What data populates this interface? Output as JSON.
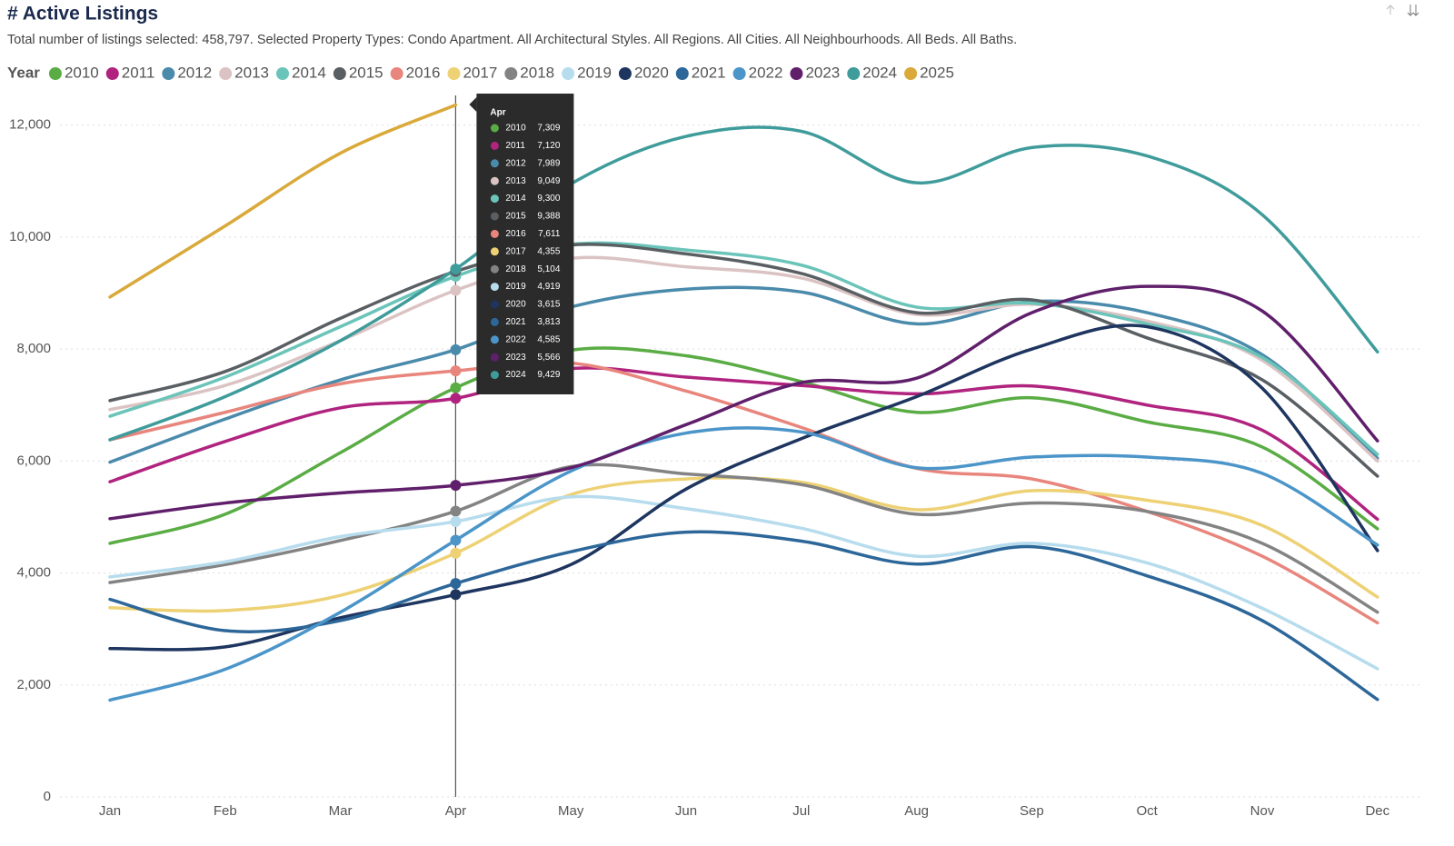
{
  "chart_data": {
    "type": "line",
    "title": "# Active Listings",
    "subtitle": "Total number of listings selected: 458,797. Selected Property Types: Condo Apartment. All Architectural Styles. All Regions. All Cities. All Neighbourhoods. All Beds. All Baths.",
    "legend_title": "Year",
    "categories": [
      "Jan",
      "Feb",
      "Mar",
      "Apr",
      "May",
      "Jun",
      "Jul",
      "Aug",
      "Sep",
      "Oct",
      "Nov",
      "Dec"
    ],
    "ylim": [
      0,
      12450
    ],
    "yticks": [
      0,
      {
        "value": 2000,
        "label": "2,000"
      },
      {
        "value": 4000,
        "label": "4,000"
      },
      {
        "value": 6000,
        "label": "6,000"
      },
      {
        "value": 8000,
        "label": "8,000"
      },
      {
        "value": 10000,
        "label": "10,000"
      },
      {
        "value": 12000,
        "label": "12,000"
      }
    ],
    "grid": true,
    "series": [
      {
        "name": "2010",
        "color": "#5aac44",
        "values": [
          4530,
          5050,
          6150,
          7309,
          7980,
          7880,
          7420,
          6870,
          7130,
          6700,
          6250,
          4790
        ],
        "value_labels": [
          null,
          null,
          null,
          "7,309",
          null,
          null,
          null,
          null,
          null,
          null,
          null,
          null
        ]
      },
      {
        "name": "2011",
        "color": "#b0237e",
        "values": [
          5630,
          6350,
          6950,
          7120,
          7650,
          7500,
          7350,
          7200,
          7340,
          7000,
          6550,
          4960
        ],
        "value_labels": [
          null,
          null,
          null,
          "7,120",
          null,
          null,
          null,
          null,
          null,
          null,
          null,
          null
        ]
      },
      {
        "name": "2012",
        "color": "#4a8aab",
        "values": [
          5980,
          6750,
          7450,
          7989,
          8750,
          9070,
          9020,
          8450,
          8850,
          8650,
          7900,
          6050
        ],
        "value_labels": [
          null,
          null,
          null,
          "7,989",
          null,
          null,
          null,
          null,
          null,
          null,
          null,
          null
        ]
      },
      {
        "name": "2013",
        "color": "#dbc3c3",
        "values": [
          6920,
          7350,
          8150,
          9049,
          9620,
          9470,
          9270,
          8620,
          8800,
          8500,
          7800,
          6000
        ],
        "value_labels": [
          null,
          null,
          null,
          "9,049",
          null,
          null,
          null,
          null,
          null,
          null,
          null,
          null
        ]
      },
      {
        "name": "2014",
        "color": "#6bc4b9",
        "values": [
          6800,
          7500,
          8400,
          9300,
          9870,
          9770,
          9500,
          8750,
          8820,
          8450,
          7850,
          6120
        ],
        "value_labels": [
          null,
          null,
          null,
          "9,300",
          null,
          null,
          null,
          null,
          null,
          null,
          null,
          null
        ]
      },
      {
        "name": "2015",
        "color": "#5a5f63",
        "values": [
          7080,
          7600,
          8550,
          9388,
          9860,
          9700,
          9350,
          8650,
          8880,
          8200,
          7450,
          5730
        ],
        "value_labels": [
          null,
          null,
          null,
          "9,388",
          null,
          null,
          null,
          null,
          null,
          null,
          null,
          null
        ]
      },
      {
        "name": "2016",
        "color": "#e8857c",
        "values": [
          6380,
          6870,
          7380,
          7611,
          7750,
          7250,
          6600,
          5870,
          5680,
          5100,
          4300,
          3110
        ],
        "value_labels": [
          null,
          null,
          null,
          "7,611",
          null,
          null,
          null,
          null,
          null,
          null,
          null,
          null
        ]
      },
      {
        "name": "2017",
        "color": "#edd174",
        "values": [
          3380,
          3330,
          3600,
          4355,
          5400,
          5680,
          5620,
          5130,
          5470,
          5300,
          4850,
          3570
        ],
        "value_labels": [
          null,
          null,
          null,
          "4,355",
          null,
          null,
          null,
          null,
          null,
          null,
          null,
          null
        ]
      },
      {
        "name": "2018",
        "color": "#838383",
        "values": [
          3830,
          4150,
          4580,
          5104,
          5900,
          5770,
          5580,
          5050,
          5250,
          5100,
          4530,
          3300
        ],
        "value_labels": [
          null,
          null,
          null,
          "5,104",
          null,
          null,
          null,
          null,
          null,
          null,
          null,
          null
        ]
      },
      {
        "name": "2019",
        "color": "#b6dced",
        "values": [
          3930,
          4200,
          4650,
          4919,
          5360,
          5150,
          4800,
          4300,
          4530,
          4180,
          3370,
          2290
        ],
        "value_labels": [
          null,
          null,
          null,
          "4,919",
          null,
          null,
          null,
          null,
          null,
          null,
          null,
          null
        ]
      },
      {
        "name": "2020",
        "color": "#1d355f",
        "values": [
          2650,
          2680,
          3200,
          3615,
          4150,
          5500,
          6400,
          7150,
          8000,
          8400,
          7300,
          4400
        ],
        "value_labels": [
          null,
          null,
          null,
          "3,615",
          null,
          null,
          null,
          null,
          null,
          null,
          null,
          null
        ]
      },
      {
        "name": "2021",
        "color": "#2d6799",
        "values": [
          3530,
          2970,
          3150,
          3813,
          4380,
          4730,
          4570,
          4160,
          4470,
          3950,
          3150,
          1740
        ],
        "value_labels": [
          null,
          null,
          null,
          "3,813",
          null,
          null,
          null,
          null,
          null,
          null,
          null,
          null
        ]
      },
      {
        "name": "2022",
        "color": "#4b95c9",
        "values": [
          1730,
          2280,
          3300,
          4585,
          5820,
          6500,
          6520,
          5880,
          6070,
          6070,
          5780,
          4500
        ],
        "value_labels": [
          null,
          null,
          null,
          "4,585",
          null,
          null,
          null,
          null,
          null,
          null,
          null,
          null
        ]
      },
      {
        "name": "2023",
        "color": "#601f6b",
        "values": [
          4970,
          5250,
          5430,
          5566,
          5880,
          6650,
          7400,
          7480,
          8650,
          9120,
          8680,
          6360
        ],
        "value_labels": [
          null,
          null,
          null,
          "5,566",
          null,
          null,
          null,
          null,
          null,
          null,
          null,
          null
        ]
      },
      {
        "name": "2024",
        "color": "#3f9c9b",
        "values": [
          6380,
          7150,
          8150,
          9429,
          10950,
          11800,
          11890,
          10970,
          11600,
          11450,
          10400,
          7950
        ],
        "value_labels": [
          null,
          null,
          null,
          "9,429",
          null,
          null,
          null,
          null,
          null,
          null,
          null,
          null
        ]
      },
      {
        "name": "2025",
        "color": "#d9a93a",
        "values": [
          8930,
          10200,
          11500,
          12360,
          null,
          null,
          null,
          null,
          null,
          null,
          null,
          null
        ]
      }
    ]
  }
}
